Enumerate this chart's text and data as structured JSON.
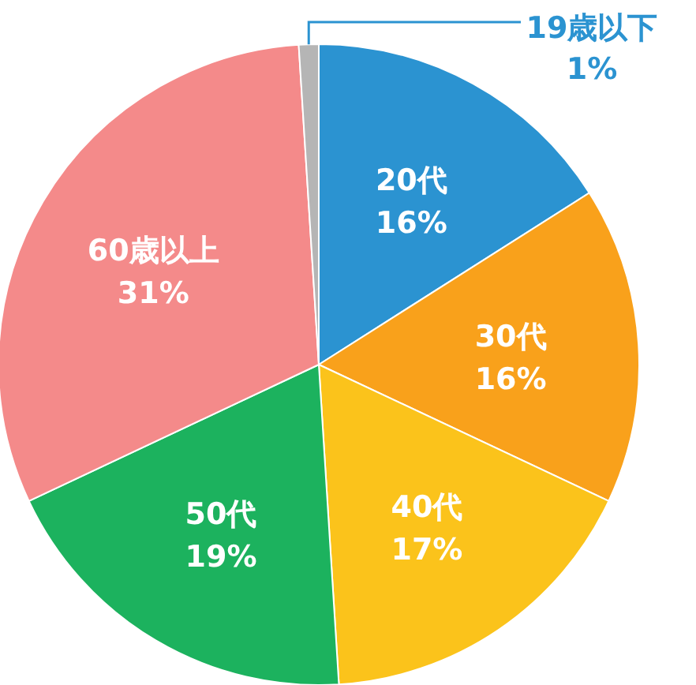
{
  "chart_data": {
    "type": "pie",
    "categories": [
      "20代",
      "30代",
      "40代",
      "50代",
      "60歳以上",
      "19歳以下"
    ],
    "values": [
      16,
      16,
      17,
      19,
      31,
      1
    ],
    "colors": [
      "#2b93d1",
      "#f9a11b",
      "#fbc31b",
      "#1cb25e",
      "#f48a8a",
      "#b5b5b5"
    ],
    "value_labels": [
      "16%",
      "16%",
      "17%",
      "19%",
      "31%",
      "1%"
    ]
  }
}
